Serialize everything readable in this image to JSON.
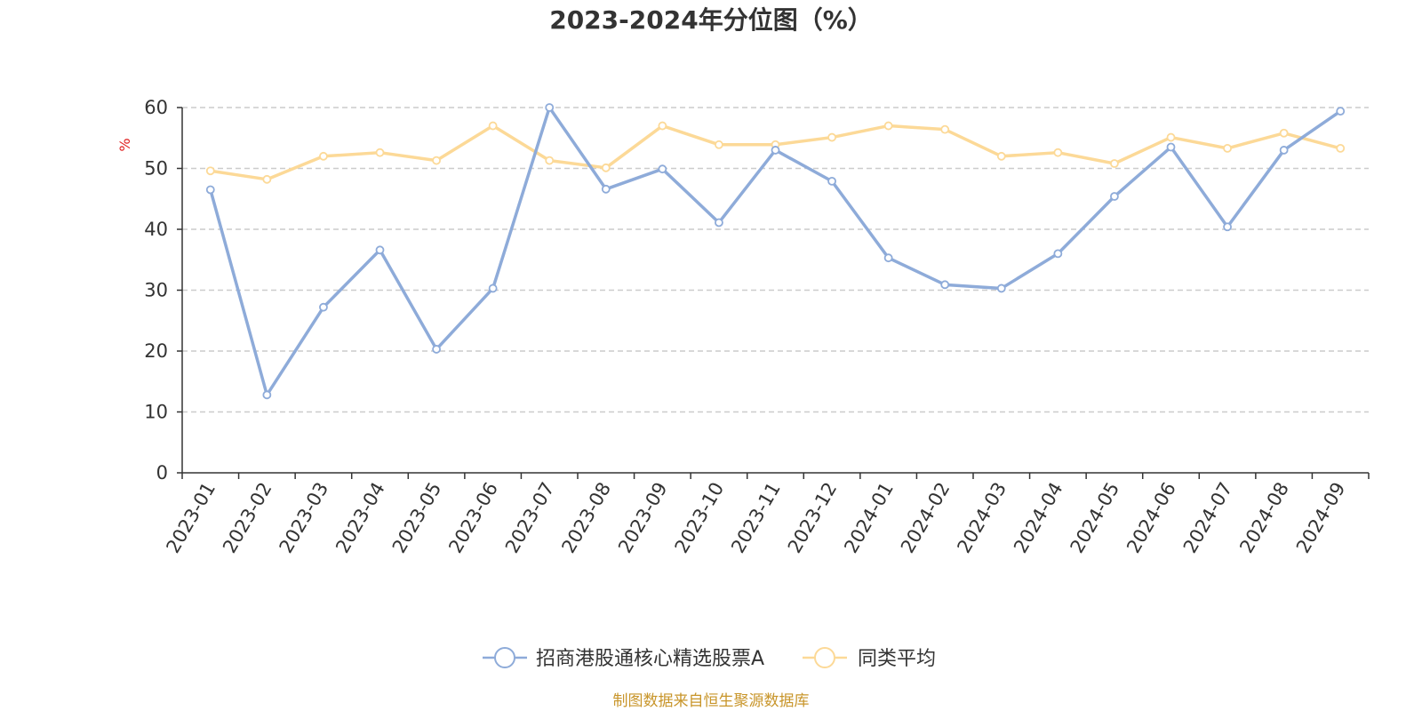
{
  "chart_data": {
    "type": "line",
    "title": "2023-2024年分位图（%）",
    "ylabel": "%",
    "xlabel": "",
    "ylim": [
      0,
      60
    ],
    "yticks": [
      0,
      10,
      20,
      30,
      40,
      50,
      60
    ],
    "grid": true,
    "legend_position": "bottom",
    "categories": [
      "2023-01",
      "2023-02",
      "2023-03",
      "2023-04",
      "2023-05",
      "2023-06",
      "2023-07",
      "2023-08",
      "2023-09",
      "2023-10",
      "2023-11",
      "2023-12",
      "2024-01",
      "2024-02",
      "2024-03",
      "2024-04",
      "2024-05",
      "2024-06",
      "2024-07",
      "2024-08",
      "2024-09"
    ],
    "series": [
      {
        "name": "招商港股通核心精选股票A",
        "color": "#8eabd9",
        "values": [
          46.5,
          12.8,
          27.2,
          36.6,
          20.3,
          30.3,
          60.0,
          46.6,
          49.9,
          41.1,
          53.0,
          47.9,
          35.3,
          30.9,
          30.3,
          36.0,
          45.4,
          53.5,
          40.4,
          53.0,
          59.4
        ]
      },
      {
        "name": "同类平均",
        "color": "#fcd997",
        "values": [
          49.6,
          48.2,
          52.0,
          52.6,
          51.3,
          57.0,
          51.3,
          50.1,
          57.0,
          53.9,
          53.9,
          55.1,
          57.0,
          56.4,
          52.0,
          52.6,
          50.8,
          55.1,
          53.3,
          55.8,
          53.3
        ]
      }
    ],
    "footer": "制图数据来自恒生聚源数据库",
    "footer_color": "#c8952a",
    "unit_color": "#e02020"
  }
}
